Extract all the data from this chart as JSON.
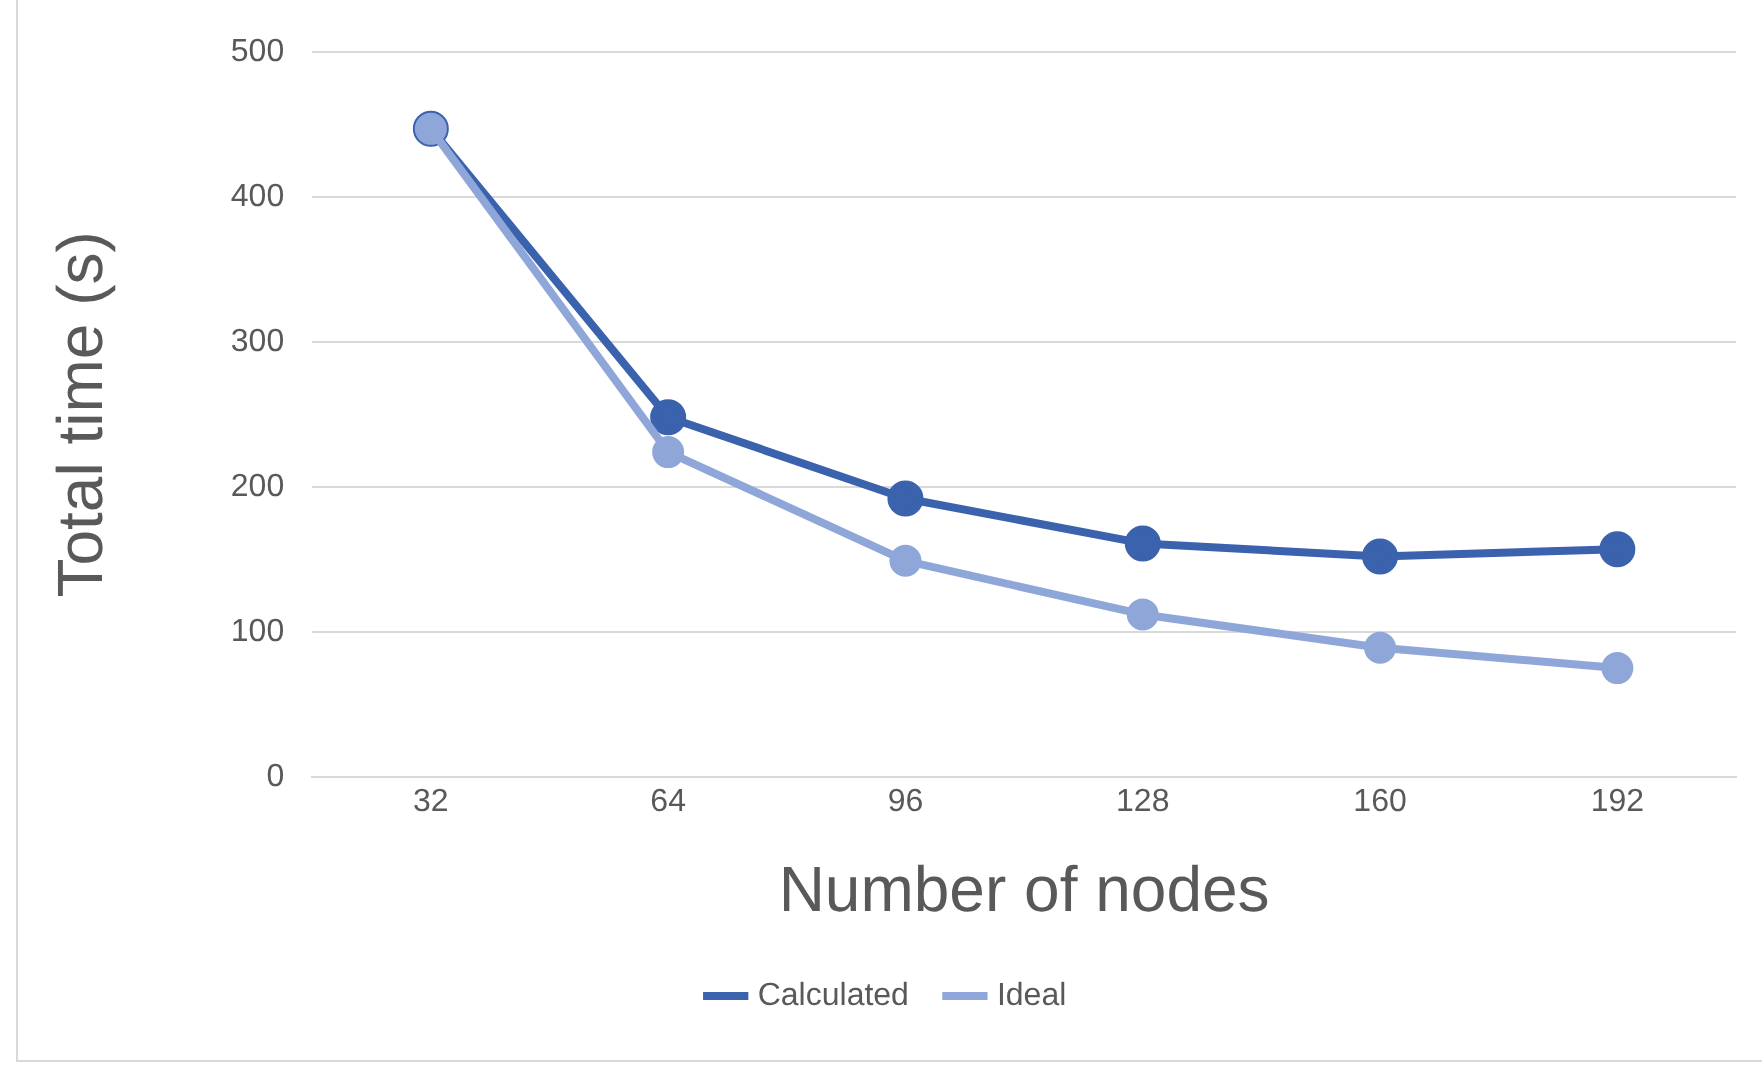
{
  "chart_data": {
    "type": "line",
    "xlabel": "Number of nodes",
    "ylabel": "Total time (s)",
    "categories": [
      "32",
      "64",
      "96",
      "128",
      "160",
      "192"
    ],
    "series": [
      {
        "name": "Calculated",
        "color": "#3a62ad",
        "values": [
          447,
          248,
          192,
          161,
          152,
          157
        ]
      },
      {
        "name": "Ideal",
        "color": "#8fa7d8",
        "values": [
          447,
          224,
          149,
          112,
          89,
          75
        ]
      }
    ],
    "ylim": [
      0,
      500
    ],
    "yticks": [
      0,
      100,
      200,
      300,
      400,
      500
    ],
    "grid": "y",
    "legend": "bottom",
    "marker": "circle",
    "line_style": "solid"
  }
}
